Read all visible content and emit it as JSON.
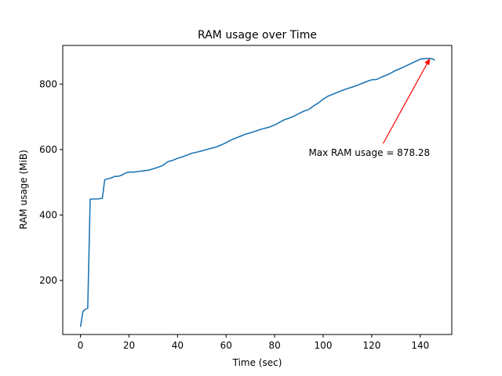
{
  "chart_data": {
    "type": "line",
    "title": "RAM usage over Time",
    "xlabel": "Time (sec)",
    "ylabel": "RAM usage (MiB)",
    "xlim": [
      -7.3,
      153.0
    ],
    "ylim": [
      35,
      918
    ],
    "xticks": [
      0,
      20,
      40,
      60,
      80,
      100,
      120,
      140
    ],
    "yticks": [
      200,
      400,
      600,
      800
    ],
    "grid": false,
    "line_color": "#1f77b4",
    "series": [
      {
        "x": [
          0,
          1,
          2,
          3,
          4,
          5,
          6,
          7,
          8,
          9,
          10,
          11,
          12,
          13,
          14,
          15,
          16,
          17,
          18,
          19,
          20,
          22,
          24,
          26,
          28,
          30,
          32,
          34,
          36,
          38,
          40,
          42,
          44,
          46,
          48,
          50,
          52,
          54,
          56,
          58,
          60,
          62,
          64,
          66,
          68,
          70,
          72,
          74,
          76,
          78,
          80,
          82,
          84,
          86,
          88,
          90,
          92,
          94,
          96,
          98,
          100,
          102,
          104,
          106,
          108,
          110,
          112,
          114,
          116,
          118,
          120,
          122,
          124,
          126,
          128,
          130,
          132,
          134,
          136,
          138,
          140,
          142,
          144,
          145,
          146
        ],
        "y": [
          58,
          105,
          112,
          115,
          448,
          449,
          449,
          449,
          450,
          451,
          508,
          510,
          512,
          514,
          518,
          518,
          519,
          522,
          526,
          529,
          531,
          531,
          533,
          535,
          537,
          541,
          546,
          552,
          563,
          567,
          573,
          578,
          583,
          589,
          592,
          596,
          600,
          604,
          608,
          614,
          621,
          629,
          635,
          641,
          647,
          651,
          656,
          661,
          665,
          669,
          675,
          683,
          691,
          696,
          702,
          710,
          717,
          722,
          733,
          742,
          754,
          763,
          769,
          775,
          781,
          786,
          791,
          796,
          802,
          808,
          813,
          814,
          821,
          827,
          834,
          842,
          848,
          855,
          862,
          869,
          876,
          878,
          878.28,
          877,
          873
        ]
      }
    ],
    "annotation": {
      "text": "Max RAM usage = 878.28",
      "color": "#ff0000",
      "point": [
        144,
        878.28
      ],
      "text_position": [
        94,
        580
      ]
    }
  }
}
